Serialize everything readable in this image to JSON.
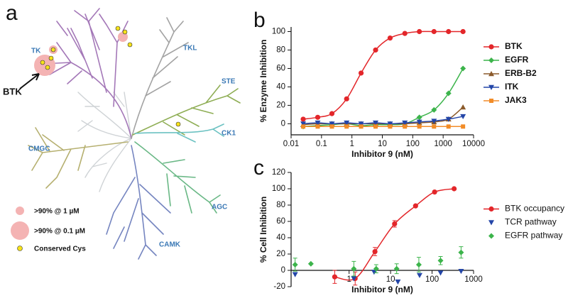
{
  "panel_labels": [
    "a",
    "b",
    "c"
  ],
  "kinome": {
    "groups": [
      "TK",
      "TKL",
      "STE",
      "CK1",
      "AGC",
      "CAMK",
      "CMGC"
    ],
    "highlight": "BTK",
    "legend": [
      ">90% @ 1 µM",
      ">90% @ 0.1 µM",
      "Conserved Cys"
    ]
  },
  "chart_data": [
    {
      "type": "line",
      "xscale": "log",
      "xlabel": "Inhibitor 9 (nM)",
      "ylabel": "% Enzyme Inhibition",
      "x": [
        0.025,
        0.075,
        0.22,
        0.67,
        2,
        6,
        18,
        55,
        165,
        500,
        1500,
        4500
      ],
      "xlim": [
        0.01,
        10000
      ],
      "xticks": [
        0.01,
        0.1,
        1,
        10,
        100,
        1000,
        10000
      ],
      "ylim": [
        -12,
        105
      ],
      "yticks": [
        0,
        20,
        40,
        60,
        80,
        100
      ],
      "legend": "right",
      "x_axis_position": "bottom",
      "series": [
        {
          "name": "BTK",
          "color": "#e3262a",
          "marker": "circle",
          "connect": true,
          "values": [
            5,
            7,
            11,
            27,
            55,
            80,
            93,
            98,
            100,
            100,
            100,
            100
          ]
        },
        {
          "name": "EGFR",
          "color": "#3cb44b",
          "marker": "diamond",
          "connect": true,
          "values": [
            -3,
            -2,
            -1,
            0,
            -2,
            -1,
            -1,
            0,
            7,
            15,
            33,
            60
          ]
        },
        {
          "name": "ERB-B2",
          "color": "#8b5a2b",
          "marker": "triangle-up",
          "connect": true,
          "values": [
            -1,
            0,
            0,
            0,
            0,
            0,
            0,
            0,
            1,
            2,
            5,
            18
          ]
        },
        {
          "name": "ITK",
          "color": "#2446a8",
          "marker": "triangle-down",
          "connect": true,
          "values": [
            0,
            1,
            0,
            1,
            0,
            1,
            0,
            1,
            2,
            3,
            5,
            8
          ]
        },
        {
          "name": "JAK3",
          "color": "#f28c28",
          "marker": "square",
          "connect": true,
          "values": [
            -3,
            -3,
            -3,
            -3,
            -3,
            -3,
            -3,
            -3,
            -3,
            -3,
            -3,
            -3
          ]
        }
      ]
    },
    {
      "type": "line",
      "xscale": "log",
      "xlabel": "Inhibitor 9 (nM)",
      "ylabel": "% Cell Inhibition",
      "xlim": [
        0.04,
        1000
      ],
      "xticks": [
        1,
        10,
        100,
        1000
      ],
      "ylim": [
        -20,
        120
      ],
      "yticks": [
        -20,
        0,
        20,
        40,
        60,
        80,
        100,
        120
      ],
      "legend": "right",
      "x_axis_position": "zero",
      "series": [
        {
          "name": "BTK occupancy",
          "color": "#e3262a",
          "marker": "circle",
          "connect": true,
          "x": [
            0.45,
            1.4,
            4.2,
            12.5,
            40,
            115,
            340
          ],
          "values": [
            -8,
            -10,
            23,
            57,
            79,
            96,
            100
          ],
          "errors": [
            8,
            8,
            5,
            4,
            null,
            null,
            null
          ]
        },
        {
          "name": "TCR pathway",
          "color": "#2446a8",
          "marker": "triangle-down",
          "connect": false,
          "x": [
            0.05,
            1.3,
            4,
            15,
            50,
            160,
            500
          ],
          "values": [
            -5,
            -10,
            -2,
            -14,
            -6,
            -3,
            -1
          ]
        },
        {
          "name": "EGFR pathway",
          "color": "#3cb44b",
          "marker": "diamond",
          "connect": false,
          "x": [
            0.05,
            0.12,
            1.3,
            4.5,
            14,
            48,
            160,
            500
          ],
          "values": [
            7,
            8,
            2,
            2,
            2,
            7,
            12,
            22
          ],
          "errors": [
            8,
            null,
            9,
            5,
            6,
            9,
            5,
            7
          ]
        }
      ]
    }
  ]
}
